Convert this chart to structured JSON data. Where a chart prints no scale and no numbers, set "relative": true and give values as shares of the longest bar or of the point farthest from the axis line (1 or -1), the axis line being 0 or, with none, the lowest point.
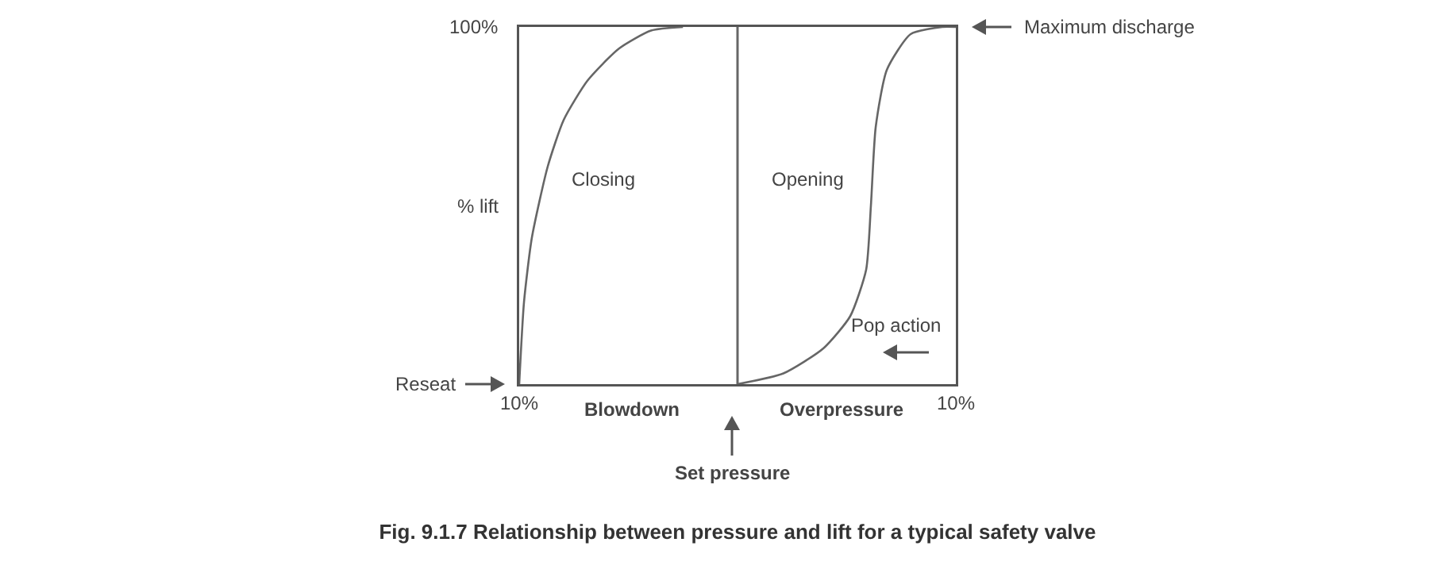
{
  "chart_data": {
    "type": "line",
    "relative": true,
    "title": "Fig. 9.1.7 Relationship between pressure and lift for a typical safety valve",
    "ylabel": "% lift",
    "xlim": [
      -10,
      10
    ],
    "xticks": [
      {
        "value": -10,
        "label": "10%"
      },
      {
        "value": 10,
        "label": "10%"
      }
    ],
    "grid": false,
    "marker": "none",
    "line_style": "solid",
    "series": [
      {
        "color": "#666666",
        "x": [
          -10,
          -9.78,
          -9.42,
          -8.69,
          -7.96,
          -6.87,
          -5.42,
          -3.96,
          -2.5
        ],
        "values": [
          0,
          0.23,
          0.41,
          0.61,
          0.74,
          0.85,
          0.94,
          0.99,
          1
        ]
      },
      {
        "color": "#666666",
        "x": [
          0,
          2.1,
          3.93,
          5.16,
          5.89,
          6.11,
          6.33,
          6.84,
          7.93,
          9.38,
          10
        ],
        "values": [
          0,
          0.03,
          0.1,
          0.19,
          0.32,
          0.5,
          0.72,
          0.88,
          0.98,
          1,
          1
        ]
      }
    ],
    "ref_lines": [
      {
        "axis": "x",
        "value": 0,
        "color": "#666666"
      }
    ],
    "annotations": [
      "100%",
      "Closing",
      "Opening",
      "Pop action",
      "Maximum discharge",
      "Reseat",
      "Blowdown",
      "Overpressure",
      "Set pressure"
    ]
  }
}
